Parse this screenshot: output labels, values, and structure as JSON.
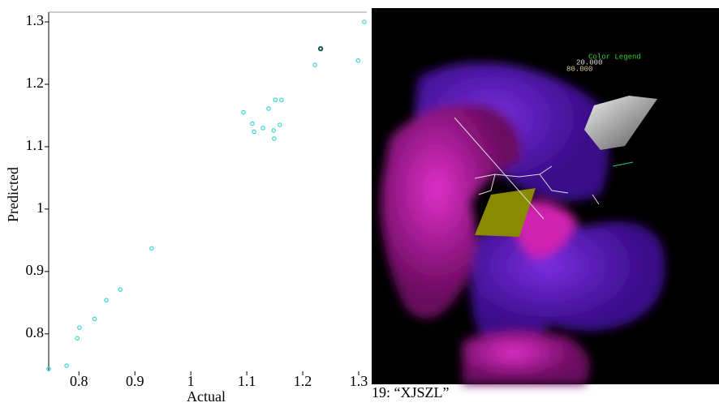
{
  "chart_data": {
    "type": "scatter",
    "xlabel": "Actual",
    "ylabel": "Predicted",
    "xlim": [
      0.746,
      1.3145
    ],
    "ylim": [
      0.74,
      1.3156
    ],
    "xticks": [
      0.8,
      0.9,
      1,
      1.1,
      1.2,
      1.3
    ],
    "yticks": [
      0.8,
      0.9,
      1,
      1.1,
      1.2,
      1.3
    ],
    "series": [
      {
        "color": "#3fd4d0",
        "x": [
          0.746,
          0.778,
          0.797,
          0.801,
          0.828,
          0.849,
          0.874,
          0.93,
          1.094,
          1.11,
          1.113,
          1.129,
          1.139,
          1.148,
          1.149,
          1.151,
          1.159,
          1.162,
          1.222,
          1.299,
          1.31
        ],
        "values": [
          0.744,
          0.749,
          0.793,
          0.81,
          0.824,
          0.854,
          0.871,
          0.937,
          1.155,
          1.137,
          1.124,
          1.13,
          1.161,
          1.126,
          1.113,
          1.175,
          1.135,
          1.175,
          1.231,
          1.238,
          1.3
        ]
      },
      {
        "color": "#1a5e55",
        "x": [
          1.232
        ],
        "values": [
          1.257
        ]
      }
    ]
  },
  "image_panel": {
    "legend_title": "Color Legend",
    "legend_values": [
      "20.000",
      "80.000"
    ],
    "caption": "19: “XJSZL”"
  }
}
